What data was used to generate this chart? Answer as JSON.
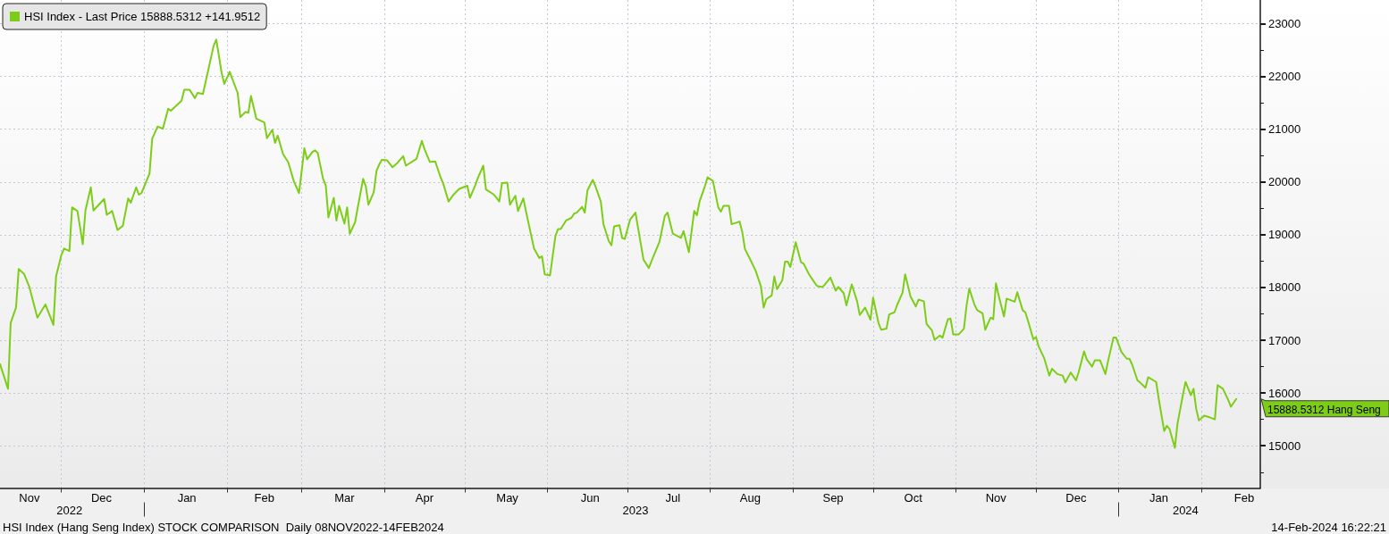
{
  "chart_data": {
    "type": "line",
    "x": [
      "2022-11-08",
      "2022-11-11",
      "2022-11-12",
      "2022-11-14",
      "2022-11-15",
      "2022-11-17",
      "2022-11-19",
      "2022-11-22",
      "2022-11-25",
      "2022-11-28",
      "2022-11-29",
      "2022-12-01",
      "2022-12-02",
      "2022-12-04",
      "2022-12-05",
      "2022-12-07",
      "2022-12-09",
      "2022-12-10",
      "2022-12-12",
      "2022-12-13",
      "2022-12-17",
      "2022-12-18",
      "2022-12-20",
      "2022-12-22",
      "2022-12-24",
      "2022-12-26",
      "2022-12-27",
      "2022-12-29",
      "2022-12-30",
      "2022-12-31",
      "2023-01-03",
      "2023-01-04",
      "2023-01-06",
      "2023-01-08",
      "2023-01-10",
      "2023-01-11",
      "2023-01-15",
      "2023-01-16",
      "2023-01-18",
      "2023-01-20",
      "2023-01-21",
      "2023-01-23",
      "2023-01-27",
      "2023-01-28",
      "2023-01-30",
      "2023-01-31",
      "2023-02-02",
      "2023-02-05",
      "2023-02-06",
      "2023-02-08",
      "2023-02-09",
      "2023-02-10",
      "2023-02-12",
      "2023-02-15",
      "2023-02-16",
      "2023-02-18",
      "2023-02-19",
      "2023-02-20",
      "2023-02-22",
      "2023-02-24",
      "2023-02-26",
      "2023-02-28",
      "2023-03-02",
      "2023-03-03",
      "2023-03-05",
      "2023-03-06",
      "2023-03-07",
      "2023-03-09",
      "2023-03-10",
      "2023-03-11",
      "2023-03-13",
      "2023-03-14",
      "2023-03-15",
      "2023-03-17",
      "2023-03-18",
      "2023-03-19",
      "2023-03-21",
      "2023-03-22",
      "2023-03-24",
      "2023-03-25",
      "2023-03-26",
      "2023-03-28",
      "2023-03-29",
      "2023-03-30",
      "2023-03-31",
      "2023-04-02",
      "2023-04-04",
      "2023-04-06",
      "2023-04-08",
      "2023-04-09",
      "2023-04-13",
      "2023-04-15",
      "2023-04-16",
      "2023-04-18",
      "2023-04-20",
      "2023-04-22",
      "2023-04-23",
      "2023-04-25",
      "2023-04-27",
      "2023-04-29",
      "2023-05-02",
      "2023-05-03",
      "2023-05-05",
      "2023-05-06",
      "2023-05-08",
      "2023-05-09",
      "2023-05-12",
      "2023-05-14",
      "2023-05-15",
      "2023-05-17",
      "2023-05-18",
      "2023-05-20",
      "2023-05-21",
      "2023-05-23",
      "2023-05-24",
      "2023-05-27",
      "2023-05-29",
      "2023-05-30",
      "2023-05-31",
      "2023-06-02",
      "2023-06-04",
      "2023-06-05",
      "2023-06-06",
      "2023-06-08",
      "2023-06-10",
      "2023-06-11",
      "2023-06-12",
      "2023-06-14",
      "2023-06-15",
      "2023-06-16",
      "2023-06-18",
      "2023-06-19",
      "2023-06-21",
      "2023-06-22",
      "2023-06-24",
      "2023-06-25",
      "2023-06-26",
      "2023-06-28",
      "2023-06-29",
      "2023-06-30",
      "2023-07-02",
      "2023-07-04",
      "2023-07-05",
      "2023-07-07",
      "2023-07-09",
      "2023-07-10",
      "2023-07-13",
      "2023-07-15",
      "2023-07-16",
      "2023-07-18",
      "2023-07-21",
      "2023-07-22",
      "2023-07-24",
      "2023-07-26",
      "2023-07-27",
      "2023-07-28",
      "2023-07-30",
      "2023-07-31",
      "2023-08-02",
      "2023-08-04",
      "2023-08-05",
      "2023-08-06",
      "2023-08-08",
      "2023-08-09",
      "2023-08-12",
      "2023-08-13",
      "2023-08-14",
      "2023-08-16",
      "2023-08-18",
      "2023-08-20",
      "2023-08-21",
      "2023-08-22",
      "2023-08-24",
      "2023-08-25",
      "2023-08-26",
      "2023-08-28",
      "2023-08-29",
      "2023-08-30",
      "2023-08-31",
      "2023-09-02",
      "2023-09-04",
      "2023-09-05",
      "2023-09-07",
      "2023-09-09",
      "2023-09-10",
      "2023-09-12",
      "2023-09-13",
      "2023-09-15",
      "2023-09-17",
      "2023-09-18",
      "2023-09-20",
      "2023-09-21",
      "2023-09-23",
      "2023-09-25",
      "2023-09-26",
      "2023-09-28",
      "2023-09-30",
      "2023-10-01",
      "2023-10-03",
      "2023-10-04",
      "2023-10-06",
      "2023-10-07",
      "2023-10-09",
      "2023-10-10",
      "2023-10-12",
      "2023-10-13",
      "2023-10-15",
      "2023-10-17",
      "2023-10-18",
      "2023-10-20",
      "2023-10-21",
      "2023-10-23",
      "2023-10-24",
      "2023-10-26",
      "2023-10-27",
      "2023-10-29",
      "2023-10-30",
      "2023-10-31",
      "2023-11-02",
      "2023-11-04",
      "2023-11-05",
      "2023-11-06",
      "2023-11-08",
      "2023-11-09",
      "2023-11-11",
      "2023-11-12",
      "2023-11-14",
      "2023-11-15",
      "2023-11-16",
      "2023-11-17",
      "2023-11-19",
      "2023-11-20",
      "2023-11-23",
      "2023-11-24",
      "2023-11-26",
      "2023-11-27",
      "2023-11-28",
      "2023-11-30",
      "2023-12-01",
      "2023-12-02",
      "2023-12-04",
      "2023-12-06",
      "2023-12-07",
      "2023-12-09",
      "2023-12-11",
      "2023-12-12",
      "2023-12-14",
      "2023-12-16",
      "2023-12-17",
      "2023-12-19",
      "2023-12-20",
      "2023-12-22",
      "2023-12-23",
      "2023-12-25",
      "2023-12-27",
      "2023-12-28",
      "2023-12-30",
      "2023-12-31",
      "2024-01-02",
      "2024-01-04",
      "2024-01-05",
      "2024-01-06",
      "2024-01-08",
      "2024-01-09",
      "2024-01-11",
      "2024-01-12",
      "2024-01-15",
      "2024-01-16",
      "2024-01-18",
      "2024-01-19",
      "2024-01-20",
      "2024-01-22",
      "2024-01-23",
      "2024-01-25",
      "2024-01-26",
      "2024-01-28",
      "2024-01-29",
      "2024-01-30",
      "2024-01-31",
      "2024-02-02",
      "2024-02-04",
      "2024-02-06",
      "2024-02-07",
      "2024-02-09",
      "2024-02-11",
      "2024-02-12",
      "2024-02-14"
    ],
    "series": [
      {
        "name": "HSI Index - Last Price 15888.5312 +141.9512",
        "color": "#7dcd18",
        "values": [
          16550,
          16080,
          17330,
          17620,
          18350,
          18260,
          18010,
          17430,
          17680,
          17290,
          18210,
          18620,
          18740,
          18690,
          19520,
          19450,
          18820,
          19460,
          19900,
          19460,
          19680,
          19380,
          19450,
          19090,
          19170,
          19690,
          19610,
          19900,
          19760,
          19790,
          20160,
          20820,
          21050,
          21010,
          21390,
          21350,
          21540,
          21750,
          21750,
          21590,
          21690,
          21670,
          22580,
          22700,
          22070,
          21860,
          22090,
          21690,
          21230,
          21330,
          21310,
          21630,
          21200,
          21130,
          20830,
          20990,
          20740,
          20880,
          20530,
          20370,
          20020,
          19790,
          20640,
          20430,
          20570,
          20600,
          20550,
          20060,
          19940,
          19330,
          19700,
          19270,
          19550,
          19210,
          19520,
          19020,
          19240,
          19520,
          20060,
          19920,
          19570,
          19810,
          20210,
          20330,
          20420,
          20410,
          20280,
          20370,
          20490,
          20310,
          20440,
          20780,
          20620,
          20380,
          20390,
          20090,
          19970,
          19630,
          19770,
          19870,
          19930,
          19700,
          19940,
          20080,
          20310,
          19860,
          19760,
          19630,
          19980,
          19990,
          19570,
          19740,
          19450,
          19690,
          19440,
          18740,
          18560,
          18590,
          18250,
          18230,
          18970,
          19110,
          19110,
          19270,
          19320,
          19400,
          19420,
          19530,
          19420,
          19840,
          20040,
          19920,
          19630,
          19200,
          18880,
          18800,
          19160,
          19180,
          18940,
          18920,
          19290,
          19420,
          19120,
          18530,
          18370,
          18500,
          18870,
          19360,
          19420,
          19020,
          18940,
          19070,
          18670,
          19450,
          19370,
          19630,
          19920,
          20090,
          20020,
          19520,
          19440,
          19550,
          19550,
          19200,
          19250,
          19050,
          18730,
          18530,
          18320,
          18020,
          17620,
          17780,
          17850,
          18210,
          17970,
          18140,
          18490,
          18490,
          18390,
          18860,
          18480,
          18450,
          18250,
          18100,
          18030,
          18010,
          18060,
          18190,
          17940,
          18010,
          17890,
          17660,
          18060,
          17740,
          17480,
          17620,
          17390,
          17810,
          17330,
          17200,
          17220,
          17490,
          17530,
          17670,
          17900,
          18250,
          17830,
          17640,
          17770,
          17740,
          17310,
          17190,
          17010,
          17090,
          17050,
          17400,
          17410,
          17110,
          17110,
          17220,
          17660,
          17980,
          17670,
          17570,
          17510,
          17200,
          17430,
          17400,
          18080,
          17850,
          17450,
          17790,
          17730,
          17910,
          17570,
          17530,
          17370,
          17020,
          17060,
          16880,
          16670,
          16330,
          16460,
          16360,
          16330,
          16200,
          16390,
          16240,
          16400,
          16790,
          16640,
          16500,
          16620,
          16620,
          16360,
          16610,
          17050,
          17050,
          16780,
          16650,
          16650,
          16540,
          16240,
          16200,
          16100,
          16300,
          16210,
          15880,
          15280,
          15380,
          15320,
          14960,
          15420,
          15960,
          16210,
          15960,
          16080,
          15700,
          15480,
          15570,
          15540,
          15500,
          16150,
          16080,
          15870,
          15740,
          15888.5312
        ]
      }
    ],
    "xlim": [
      "2022-11-08",
      "2024-02-23"
    ],
    "xticks": [
      {
        "value": "2022-11-19",
        "label": "Nov"
      },
      {
        "value": "2022-12-01",
        "label": null
      },
      {
        "value": "2022-12-16",
        "label": "Dec"
      },
      {
        "value": "2023-01-01",
        "label": null
      },
      {
        "value": "2023-01-17",
        "label": "Jan"
      },
      {
        "value": "2023-02-01",
        "label": null
      },
      {
        "value": "2023-02-15",
        "label": "Feb"
      },
      {
        "value": "2023-03-01",
        "label": null
      },
      {
        "value": "2023-03-17",
        "label": "Mar"
      },
      {
        "value": "2023-04-01",
        "label": null
      },
      {
        "value": "2023-04-16",
        "label": "Apr"
      },
      {
        "value": "2023-05-01",
        "label": null
      },
      {
        "value": "2023-05-17",
        "label": "May"
      },
      {
        "value": "2023-06-01",
        "label": null
      },
      {
        "value": "2023-06-17",
        "label": "Jun"
      },
      {
        "value": "2023-07-01",
        "label": null
      },
      {
        "value": "2023-07-18",
        "label": "Jul"
      },
      {
        "value": "2023-08-01",
        "label": null
      },
      {
        "value": "2023-08-16",
        "label": "Aug"
      },
      {
        "value": "2023-09-01",
        "label": null
      },
      {
        "value": "2023-09-16",
        "label": "Sep"
      },
      {
        "value": "2023-10-01",
        "label": null
      },
      {
        "value": "2023-10-16",
        "label": "Oct"
      },
      {
        "value": "2023-11-01",
        "label": null
      },
      {
        "value": "2023-11-16",
        "label": "Nov"
      },
      {
        "value": "2023-12-01",
        "label": null
      },
      {
        "value": "2023-12-16",
        "label": "Dec"
      },
      {
        "value": "2024-01-01",
        "label": null
      },
      {
        "value": "2024-01-16",
        "label": "Jan"
      },
      {
        "value": "2024-02-01",
        "label": null
      },
      {
        "value": "2024-02-17",
        "label": "Feb"
      }
    ],
    "x2lim": [
      "2022-11-08",
      "2024-02-23"
    ],
    "x2ticks": [
      {
        "value": "2022-12-04",
        "label": "2022"
      },
      {
        "value": "2023-01-01",
        "label": null
      },
      {
        "value": "2023-07-04",
        "label": "2023"
      },
      {
        "value": "2024-01-01",
        "label": null
      },
      {
        "value": "2024-01-26",
        "label": "2024"
      }
    ],
    "ylim": [
      14200,
      23450
    ],
    "yticks": [
      {
        "value": 14500,
        "label": null
      },
      15000,
      {
        "value": 15500,
        "label": null
      },
      16000,
      {
        "value": 16500,
        "label": null
      },
      17000,
      {
        "value": 17500,
        "label": null
      },
      18000,
      {
        "value": 18500,
        "label": null
      },
      19000,
      {
        "value": 19500,
        "label": null
      },
      20000,
      {
        "value": 20500,
        "label": null
      },
      21000,
      {
        "value": 21500,
        "label": null
      },
      22000,
      {
        "value": 22500,
        "label": null
      },
      23000
    ],
    "grid": true,
    "legend": "top left",
    "annotations": [
      "HSI Index (Hang Seng Index) STOCK COMPARISON  Daily 08NOV2022-14FEB2024",
      "14-Feb-2024 16:22:21",
      "15888.5312 Hang Seng"
    ]
  }
}
